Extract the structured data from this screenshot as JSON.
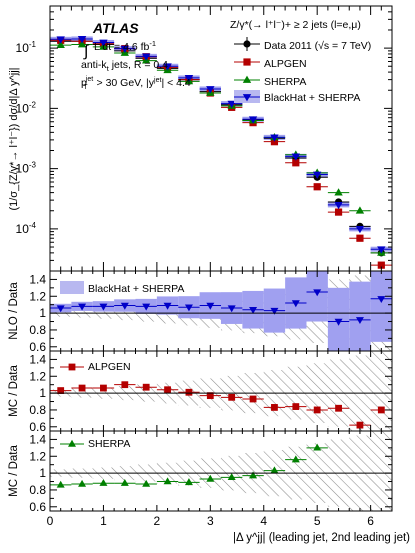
{
  "experiment": "ATLAS",
  "luminosity": "L dt = 4.6 fb",
  "luminosity_sup": "-1",
  "jet_algo": "anti-k",
  "jet_algo_sub": "t",
  "jet_algo_rest": " jets, R = 0.4",
  "cuts": "> 30 GeV, |y",
  "cuts_sup": "jet",
  "cuts_rest": "| < 4.4",
  "process": "Z/γ*(→ l⁺l⁻)+ ≥ 2 jets (l=e,μ)",
  "colors": {
    "data": "#000000",
    "alpgen": "#b40000",
    "sherpa": "#008000",
    "blackhat": "#0000c8",
    "blackhat_band": "#a0a0f0",
    "hatch": "#909090"
  },
  "chart_data": [
    {
      "type": "scatter",
      "panel": "main",
      "xlabel": "|Δ y^jj| (leading jet, 2nd leading jet)",
      "ylabel": "(1/σ_{Z/γ*→ l⁺l⁻}) dσ/d|Δ y^jj|",
      "y_scale": "log",
      "xlim": [
        0,
        6.4
      ],
      "ylim": [
        2e-05,
        0.5
      ],
      "x": [
        0.2,
        0.6,
        1.0,
        1.4,
        1.8,
        2.2,
        2.6,
        3.0,
        3.4,
        3.8,
        4.2,
        4.6,
        5.0,
        5.4,
        5.8,
        6.2
      ],
      "series": [
        {
          "name": "Data 2011 (√s = 7 TeV)",
          "values": [
            0.13,
            0.13,
            0.115,
            0.09,
            0.068,
            0.046,
            0.03,
            0.019,
            0.0115,
            0.0064,
            0.0032,
            0.0015,
            0.00072,
            0.00028,
            0.00011,
            4e-05
          ]
        },
        {
          "name": "ALPGEN",
          "values": [
            0.135,
            0.13,
            0.118,
            0.098,
            0.072,
            0.048,
            0.03,
            0.018,
            0.0104,
            0.0058,
            0.0028,
            0.00125,
            0.0005,
            0.00019,
            7e-05,
            2.5e-05
          ]
        },
        {
          "name": "SHERPA",
          "values": [
            0.112,
            0.115,
            0.105,
            0.083,
            0.062,
            0.043,
            0.028,
            0.018,
            0.011,
            0.0063,
            0.0033,
            0.0017,
            0.00085,
            0.0004,
            0.0002,
            4e-05
          ]
        },
        {
          "name": "BlackHat + SHERPA",
          "values": [
            0.14,
            0.142,
            0.124,
            0.098,
            0.073,
            0.05,
            0.032,
            0.021,
            0.012,
            0.0066,
            0.0033,
            0.0016,
            0.0008,
            0.00025,
            0.0001,
            4.6e-05
          ]
        }
      ]
    },
    {
      "type": "scatter",
      "panel": "ratio",
      "ylabel": "NLO / Data",
      "ylim": [
        0.55,
        1.5
      ],
      "x": [
        0.2,
        0.6,
        1.0,
        1.4,
        1.8,
        2.2,
        2.6,
        3.0,
        3.4,
        3.8,
        4.2,
        4.6,
        5.0,
        5.4,
        5.8,
        6.2
      ],
      "series": [
        {
          "name": "BlackHat + SHERPA",
          "values": [
            1.06,
            1.08,
            1.08,
            1.09,
            1.08,
            1.09,
            1.07,
            1.09,
            1.06,
            1.04,
            1.03,
            1.12,
            1.25,
            0.9,
            0.92,
            1.17
          ]
        }
      ]
    },
    {
      "type": "scatter",
      "panel": "ratio",
      "ylabel": "MC / Data",
      "ylim": [
        0.55,
        1.5
      ],
      "x": [
        0.2,
        0.6,
        1.0,
        1.4,
        1.8,
        2.2,
        2.6,
        3.0,
        3.4,
        3.8,
        4.2,
        4.6,
        5.0,
        5.4,
        5.8,
        6.2
      ],
      "series": [
        {
          "name": "ALPGEN",
          "values": [
            1.03,
            1.06,
            1.06,
            1.1,
            1.07,
            1.04,
            1.01,
            0.97,
            0.95,
            0.93,
            0.83,
            0.84,
            0.8,
            0.82,
            0.62,
            0.8
          ]
        }
      ]
    },
    {
      "type": "scatter",
      "panel": "ratio",
      "ylabel": "MC / Data",
      "ylim": [
        0.55,
        1.5
      ],
      "x": [
        0.2,
        0.6,
        1.0,
        1.4,
        1.8,
        2.2,
        2.6,
        3.0,
        3.4,
        3.8,
        4.2,
        4.6,
        5.0,
        5.4,
        5.8,
        6.2
      ],
      "series": [
        {
          "name": "SHERPA",
          "values": [
            0.86,
            0.87,
            0.88,
            0.88,
            0.87,
            0.9,
            0.89,
            0.93,
            0.95,
            0.97,
            1.03,
            1.16,
            1.3,
            null,
            null,
            null
          ]
        }
      ]
    }
  ],
  "axes": {
    "main_yticks": [
      {
        "v": 0.0001,
        "base": "10",
        "exp": "-4"
      },
      {
        "v": 0.001,
        "base": "10",
        "exp": "-3"
      },
      {
        "v": 0.01,
        "base": "10",
        "exp": "-2"
      },
      {
        "v": 0.1,
        "base": "10",
        "exp": "-1"
      }
    ],
    "ratio_yticks": [
      {
        "v": 0.6,
        "t": "0.6"
      },
      {
        "v": 0.8,
        "t": "0.8"
      },
      {
        "v": 1.0,
        "t": "1"
      },
      {
        "v": 1.2,
        "t": "1.2"
      },
      {
        "v": 1.4,
        "t": "1.4"
      }
    ],
    "xticks": [
      {
        "v": 0,
        "t": "0"
      },
      {
        "v": 1,
        "t": "1"
      },
      {
        "v": 2,
        "t": "2"
      },
      {
        "v": 3,
        "t": "3"
      },
      {
        "v": 4,
        "t": "4"
      },
      {
        "v": 5,
        "t": "5"
      },
      {
        "v": 6,
        "t": "6"
      }
    ]
  }
}
